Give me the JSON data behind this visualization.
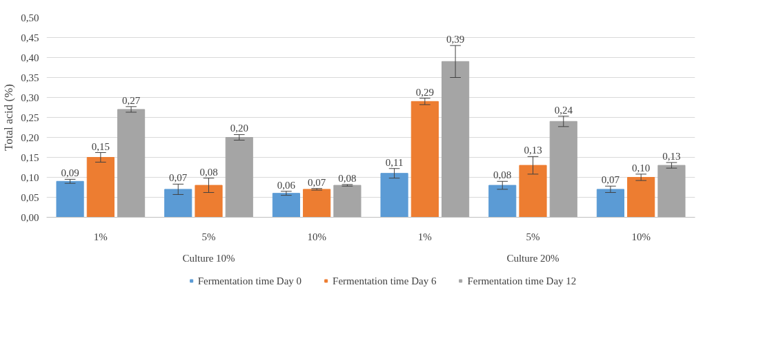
{
  "chart_data": {
    "type": "bar",
    "categories": [
      "1%",
      "5%",
      "10%",
      "1%",
      "5%",
      "10%"
    ],
    "ylabel": "Total acid (%)",
    "annotations": [
      "Culture 10%",
      "Culture 20%"
    ],
    "series": [
      {
        "name": "Fermentation time Day 0",
        "color": "#5b9bd5",
        "values": [
          0.09,
          0.07,
          0.06,
          0.11,
          0.08,
          0.07
        ],
        "errors": [
          0.005,
          0.013,
          0.005,
          0.012,
          0.01,
          0.008
        ],
        "value_labels": [
          "0,09",
          "0,07",
          "0,06",
          "0,11",
          "0,08",
          "0,07"
        ]
      },
      {
        "name": "Fermentation time Day 6",
        "color": "#ed7d31",
        "values": [
          0.15,
          0.08,
          0.07,
          0.29,
          0.13,
          0.1
        ],
        "errors": [
          0.012,
          0.018,
          0.002,
          0.008,
          0.022,
          0.008
        ],
        "value_labels": [
          "0,15",
          "0,08",
          "0,07",
          "0,29",
          "0,13",
          "0,10"
        ]
      },
      {
        "name": "Fermentation time Day 12",
        "color": "#a5a5a5",
        "values": [
          0.27,
          0.2,
          0.08,
          0.39,
          0.24,
          0.13
        ],
        "errors": [
          0.007,
          0.007,
          0.002,
          0.04,
          0.013,
          0.007
        ],
        "value_labels": [
          "0,27",
          "0,20",
          "0,08",
          "0,39",
          "0,24",
          "0,13"
        ]
      }
    ],
    "ylim": [
      0,
      0.5
    ],
    "yticks": [
      {
        "value": 0,
        "label": "0,00"
      },
      {
        "value": 0.05,
        "label": "0,05"
      },
      {
        "value": 0.1,
        "label": "0,10"
      },
      {
        "value": 0.15,
        "label": "0,15"
      },
      {
        "value": 0.2,
        "label": "0,20"
      },
      {
        "value": 0.25,
        "label": "0,25"
      },
      {
        "value": 0.3,
        "label": "0,30"
      },
      {
        "value": 0.35,
        "label": "0,35"
      },
      {
        "value": 0.4,
        "label": "0,40"
      },
      {
        "value": 0.45,
        "label": "0,45"
      },
      {
        "value": 0.5,
        "label": "0,50"
      }
    ],
    "grid": "y",
    "legend": "bottom"
  }
}
